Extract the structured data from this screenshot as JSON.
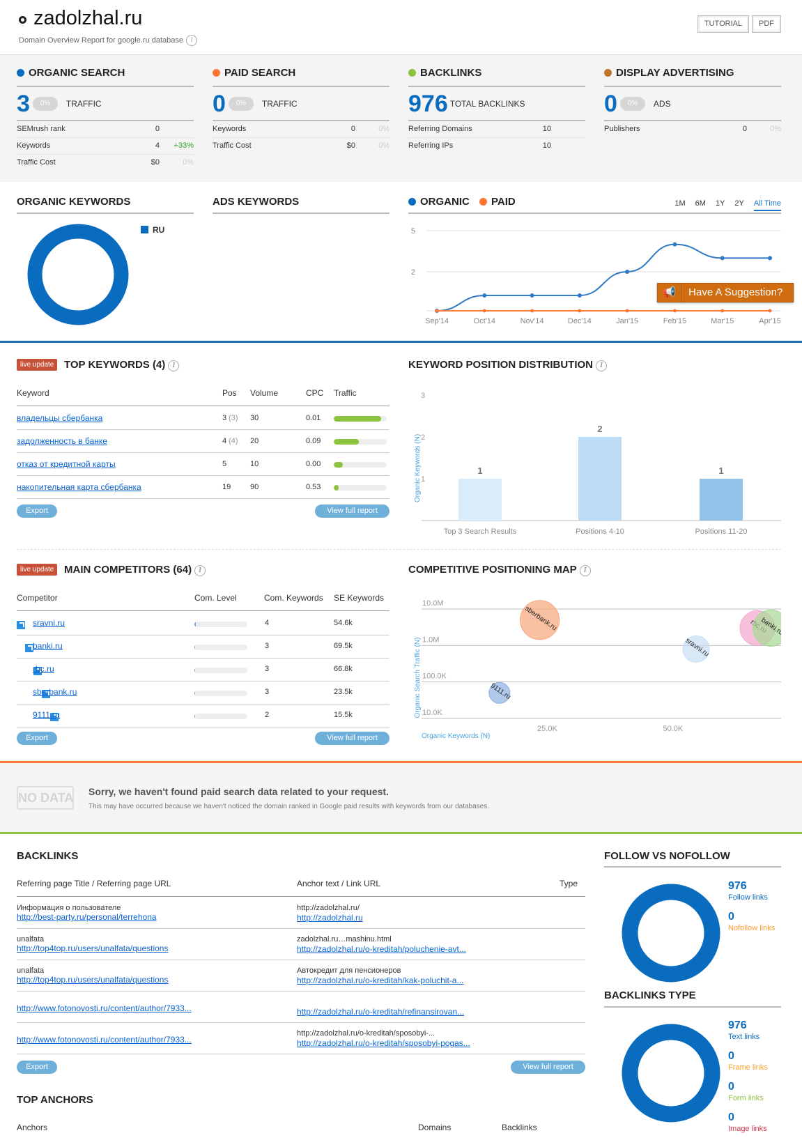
{
  "header": {
    "domain": "zadolzhal.ru",
    "subtitle": "Domain Overview Report for google.ru database",
    "info_icon": "i",
    "tutorial_label": "TUTORIAL",
    "pdf_label": "PDF"
  },
  "summary": [
    {
      "title": "ORGANIC SEARCH",
      "color": "#0a6cbf",
      "value": "3",
      "badge": "0%",
      "unit": "TRAFFIC",
      "rows": [
        {
          "label": "SEMrush rank",
          "value": "0",
          "change": ""
        },
        {
          "label": "Keywords",
          "value": "4",
          "change": "+33%"
        },
        {
          "label": "Traffic Cost",
          "value": "$0",
          "change": "0%"
        }
      ]
    },
    {
      "title": "PAID SEARCH",
      "color": "#ff7633",
      "value": "0",
      "badge": "0%",
      "unit": "TRAFFIC",
      "rows": [
        {
          "label": "Keywords",
          "value": "0",
          "change": "0%"
        },
        {
          "label": "Traffic Cost",
          "value": "$0",
          "change": "0%"
        }
      ]
    },
    {
      "title": "BACKLINKS",
      "color": "#8dc13f",
      "value": "976",
      "badge": "",
      "unit": "TOTAL BACKLINKS",
      "rows": [
        {
          "label": "Referring Domains",
          "value": "10",
          "change": ""
        },
        {
          "label": "Referring IPs",
          "value": "10",
          "change": ""
        }
      ]
    },
    {
      "title": "DISPLAY ADVERTISING",
      "color": "#c0742a",
      "value": "0",
      "badge": "0%",
      "unit": "ADS",
      "rows": [
        {
          "label": "Publishers",
          "value": "0",
          "change": "0%"
        }
      ]
    }
  ],
  "organic_keywords": {
    "title": "ORGANIC KEYWORDS",
    "legend": "RU",
    "color": "#0a6cbf"
  },
  "ads_keywords": {
    "title": "ADS KEYWORDS"
  },
  "trend": {
    "legend_organic": "ORGANIC",
    "legend_paid": "PAID",
    "tabs": [
      "1M",
      "6M",
      "1Y",
      "2Y",
      "All Time"
    ],
    "active_tab": "All Time",
    "suggestion_label": "Have A Suggestion?"
  },
  "live_update": "live update",
  "top_keywords": {
    "title": "TOP KEYWORDS (4)",
    "columns": [
      "Keyword",
      "Pos",
      "Volume",
      "CPC",
      "Traffic"
    ],
    "rows": [
      {
        "keyword": "владельцы сбербанка",
        "pos": "3",
        "prev": "(3)",
        "volume": "30",
        "cpc": "0.01",
        "traffic": 0.9
      },
      {
        "keyword": "задолженность в банке",
        "pos": "4",
        "prev": "(4)",
        "volume": "20",
        "cpc": "0.09",
        "traffic": 0.47
      },
      {
        "keyword": "отказ от кредитной карты",
        "pos": "5",
        "prev": "",
        "volume": "10",
        "cpc": "0.00",
        "traffic": 0.17
      },
      {
        "keyword": "накопительная карта сбербанка",
        "pos": "19",
        "prev": "",
        "volume": "90",
        "cpc": "0.53",
        "traffic": 0.09
      }
    ],
    "export_label": "Export",
    "full_report_label": "View full report"
  },
  "main_competitors": {
    "title": "MAIN COMPETITORS (64)",
    "columns": [
      "Competitor",
      "Com. Level",
      "Com. Keywords",
      "SE Keywords"
    ],
    "rows": [
      {
        "domain": "sravni.ru",
        "level": 0.03,
        "com_keywords": "4",
        "se_keywords": "54.6k"
      },
      {
        "domain": "banki.ru",
        "level": 0.01,
        "com_keywords": "3",
        "se_keywords": "69.5k"
      },
      {
        "domain": "rbc.ru",
        "level": 0.01,
        "com_keywords": "3",
        "se_keywords": "66.8k"
      },
      {
        "domain": "sberbank.ru",
        "level": 0.01,
        "com_keywords": "3",
        "se_keywords": "23.5k"
      },
      {
        "domain": "9111.ru",
        "level": 0.01,
        "com_keywords": "2",
        "se_keywords": "15.5k"
      }
    ],
    "export_label": "Export",
    "full_report_label": "View full report"
  },
  "no_data": {
    "badge": "NO DATA",
    "title": "Sorry, we haven't found paid search data related to your request.",
    "text": "This may have occurred because we haven't noticed the domain ranked in Google paid results with keywords from our databases."
  },
  "backlinks": {
    "title": "BACKLINKS",
    "columns": [
      "Referring page Title / Referring page URL",
      "Anchor text / Link URL",
      "Type"
    ],
    "rows": [
      {
        "title": "Информация о пользователе",
        "url": "http://best-party.ru/personal/terrehona",
        "anchor": "http://zadolzhal.ru/",
        "link": "http://zadolzhal.ru"
      },
      {
        "title": "unalfata",
        "url": "http://top4top.ru/users/unalfata/questions",
        "anchor": "zadolzhal.ru…mashinu.html",
        "link": "http://zadolzhal.ru/o-kreditah/poluchenie-avt..."
      },
      {
        "title": "unalfata",
        "url": "http://top4top.ru/users/unalfata/questions",
        "anchor": "Автокредит для пенсионеров",
        "link": "http://zadolzhal.ru/o-kreditah/kak-poluchit-a..."
      },
      {
        "title": "",
        "url": "http://www.fotonovosti.ru/content/author/7933...",
        "anchor": "",
        "link": "http://zadolzhal.ru/o-kreditah/refinansirovan..."
      },
      {
        "title": "",
        "url": "http://www.fotonovosti.ru/content/author/7933...",
        "anchor": "http://zadolzhal.ru/o-kreditah/sposobyi-...",
        "link": "http://zadolzhal.ru/o-kreditah/sposobyi-pogas..."
      }
    ],
    "export_label": "Export",
    "full_report_label": "View full report"
  },
  "top_anchors": {
    "title": "TOP ANCHORS",
    "columns": [
      "Anchors",
      "Domains",
      "Backlinks"
    ]
  },
  "follow": {
    "title": "FOLLOW VS NOFOLLOW",
    "items": [
      {
        "value": "976",
        "label": "Follow links",
        "color": "#0a6cbf"
      },
      {
        "value": "0",
        "label": "Nofollow links",
        "color": "#ff9c2a"
      }
    ]
  },
  "backlinks_type": {
    "title": "BACKLINKS TYPE",
    "items": [
      {
        "value": "976",
        "label": "Text links",
        "color": "#0a6cbf"
      },
      {
        "value": "0",
        "label": "Frame links",
        "color": "#ff9c2a"
      },
      {
        "value": "0",
        "label": "Form links",
        "color": "#8dc13f"
      },
      {
        "value": "0",
        "label": "Image links",
        "color": "#d9364f"
      }
    ]
  },
  "chart_data": [
    {
      "type": "line",
      "title": "Organic / Paid traffic trend",
      "x": [
        "Sep'14",
        "Oct'14",
        "Nov'14",
        "Dec'14",
        "Jan'15",
        "Feb'15",
        "Mar'15",
        "Apr'15"
      ],
      "yticks": [
        "5",
        "2"
      ],
      "series": [
        {
          "name": "ORGANIC",
          "color": "#2f7ac4",
          "values": [
            0,
            1,
            1,
            1,
            2,
            4,
            3,
            3
          ]
        },
        {
          "name": "PAID",
          "color": "#ff7633",
          "values": [
            0,
            0,
            0,
            0,
            0,
            0,
            0,
            0
          ]
        }
      ]
    },
    {
      "type": "bar",
      "title": "KEYWORD POSITION DISTRIBUTION",
      "categories": [
        "Top 3 Search Results",
        "Positions 4-10",
        "Positions 11-20"
      ],
      "values": [
        1,
        2,
        1
      ],
      "colors": [
        "#d9ecfb",
        "#bcdcf6",
        "#92c2e8"
      ],
      "ylabel": "Organic Keywords (N)",
      "yticks": [
        "3",
        "2",
        "1"
      ],
      "ylim": [
        0,
        3
      ]
    },
    {
      "type": "scatter",
      "title": "COMPETITIVE POSITIONING MAP",
      "xlabel": "Organic Keywords (N)",
      "ylabel": "Organic Search Traffic (N)",
      "xticks": [
        "25.0K",
        "50.0K"
      ],
      "yticks": [
        "10.0M",
        "1.0M",
        "100.0K",
        "10.0K"
      ],
      "xlim": [
        0,
        71500
      ],
      "ylim_log10": [
        4,
        7
      ],
      "points": [
        {
          "name": "sberbank.ru",
          "x": 23500,
          "y": 5000000,
          "r": 1.4,
          "color": "#f8a57a"
        },
        {
          "name": "9111.ru",
          "x": 15500,
          "y": 50000,
          "r": 0.75,
          "color": "#8fb0e0"
        },
        {
          "name": "sravni.ru",
          "x": 54600,
          "y": 800000,
          "r": 0.95,
          "color": "#c7def3"
        },
        {
          "name": "rbc.ru",
          "x": 66800,
          "y": 3000000,
          "r": 1.25,
          "color": "#f4a6cc"
        },
        {
          "name": "banki.ru",
          "x": 69500,
          "y": 3000000,
          "r": 1.3,
          "color": "#a6d996"
        }
      ]
    }
  ]
}
